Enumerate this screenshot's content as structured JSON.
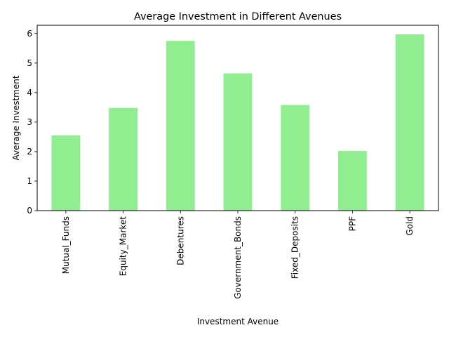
{
  "chart_data": {
    "type": "bar",
    "title": "Average Investment in Different Avenues",
    "xlabel": "Investment Avenue",
    "ylabel": "Average Investment",
    "categories": [
      "Mutual_Funds",
      "Equity_Market",
      "Debentures",
      "Government_Bonds",
      "Fixed_Deposits",
      "PPF",
      "Gold"
    ],
    "values": [
      2.55,
      3.48,
      5.75,
      4.65,
      3.58,
      2.02,
      5.97
    ],
    "ylim": [
      0,
      6.28
    ],
    "yticks": [
      0,
      1,
      2,
      3,
      4,
      5,
      6
    ],
    "bar_color": "#90ee90",
    "grid": false,
    "legend": "none"
  }
}
